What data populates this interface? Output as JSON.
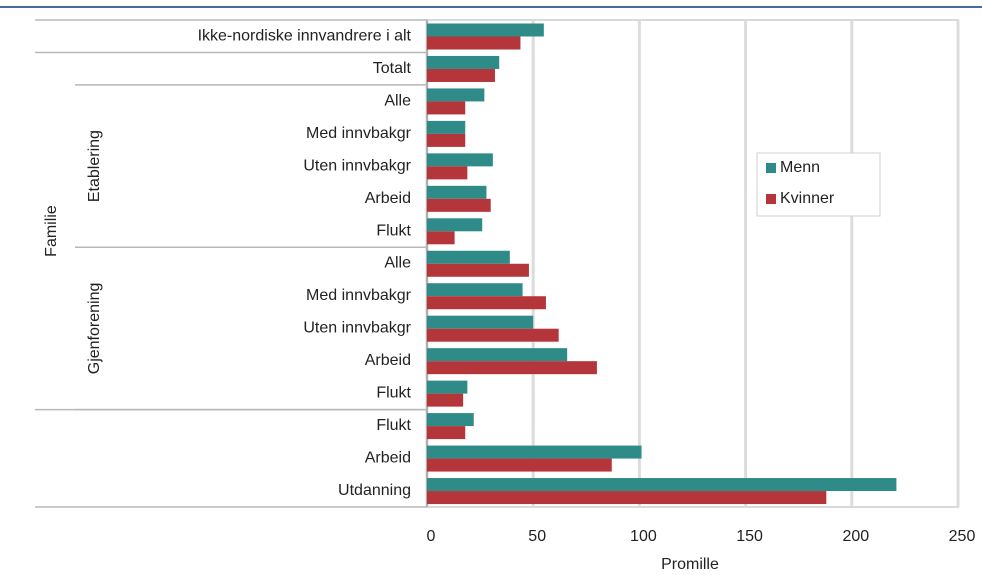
{
  "chart_data": {
    "type": "bar",
    "orientation": "horizontal",
    "categories": [
      "Ikke-nordiske innvandrere i alt",
      "Totalt",
      "Alle",
      "Med innvbakgr",
      "Uten innvbakgr",
      "Arbeid",
      "Flukt",
      "Alle",
      "Med innvbakgr",
      "Uten innvbakgr",
      "Arbeid",
      "Flukt",
      "Flukt",
      "Arbeid",
      "Utdanning"
    ],
    "category_groups": [
      {
        "name": "Familie",
        "span": [
          1,
          11
        ]
      },
      {
        "name": "Etablering",
        "span": [
          2,
          6
        ]
      },
      {
        "name": "Gjenforening",
        "span": [
          7,
          11
        ]
      }
    ],
    "series": [
      {
        "name": "Menn",
        "color": "#2e8b87",
        "values": [
          55,
          34,
          27,
          18,
          31,
          28,
          26,
          39,
          45,
          50,
          66,
          19,
          22,
          101,
          221
        ]
      },
      {
        "name": "Kvinner",
        "color": "#b5363a",
        "values": [
          44,
          32,
          18,
          18,
          19,
          30,
          13,
          48,
          56,
          62,
          80,
          17,
          18,
          87,
          188
        ]
      }
    ],
    "x_label": "Promille",
    "xlim": [
      0,
      250
    ],
    "xticks": [
      0,
      50,
      100,
      150,
      200,
      250
    ],
    "grid": true,
    "legend": "right"
  }
}
